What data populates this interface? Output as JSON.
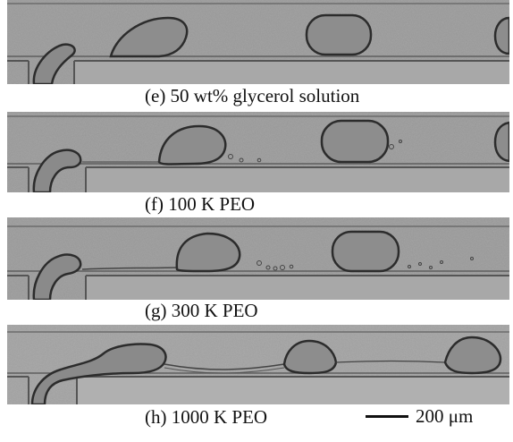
{
  "panels": [
    {
      "caption": "(e) 50 wt% glycerol solution"
    },
    {
      "caption": "(f) 100 K PEO"
    },
    {
      "caption": "(g) 300 K PEO"
    },
    {
      "caption": "(h) 1000 K PEO"
    }
  ],
  "scale_bar": {
    "label": "200 μm"
  }
}
